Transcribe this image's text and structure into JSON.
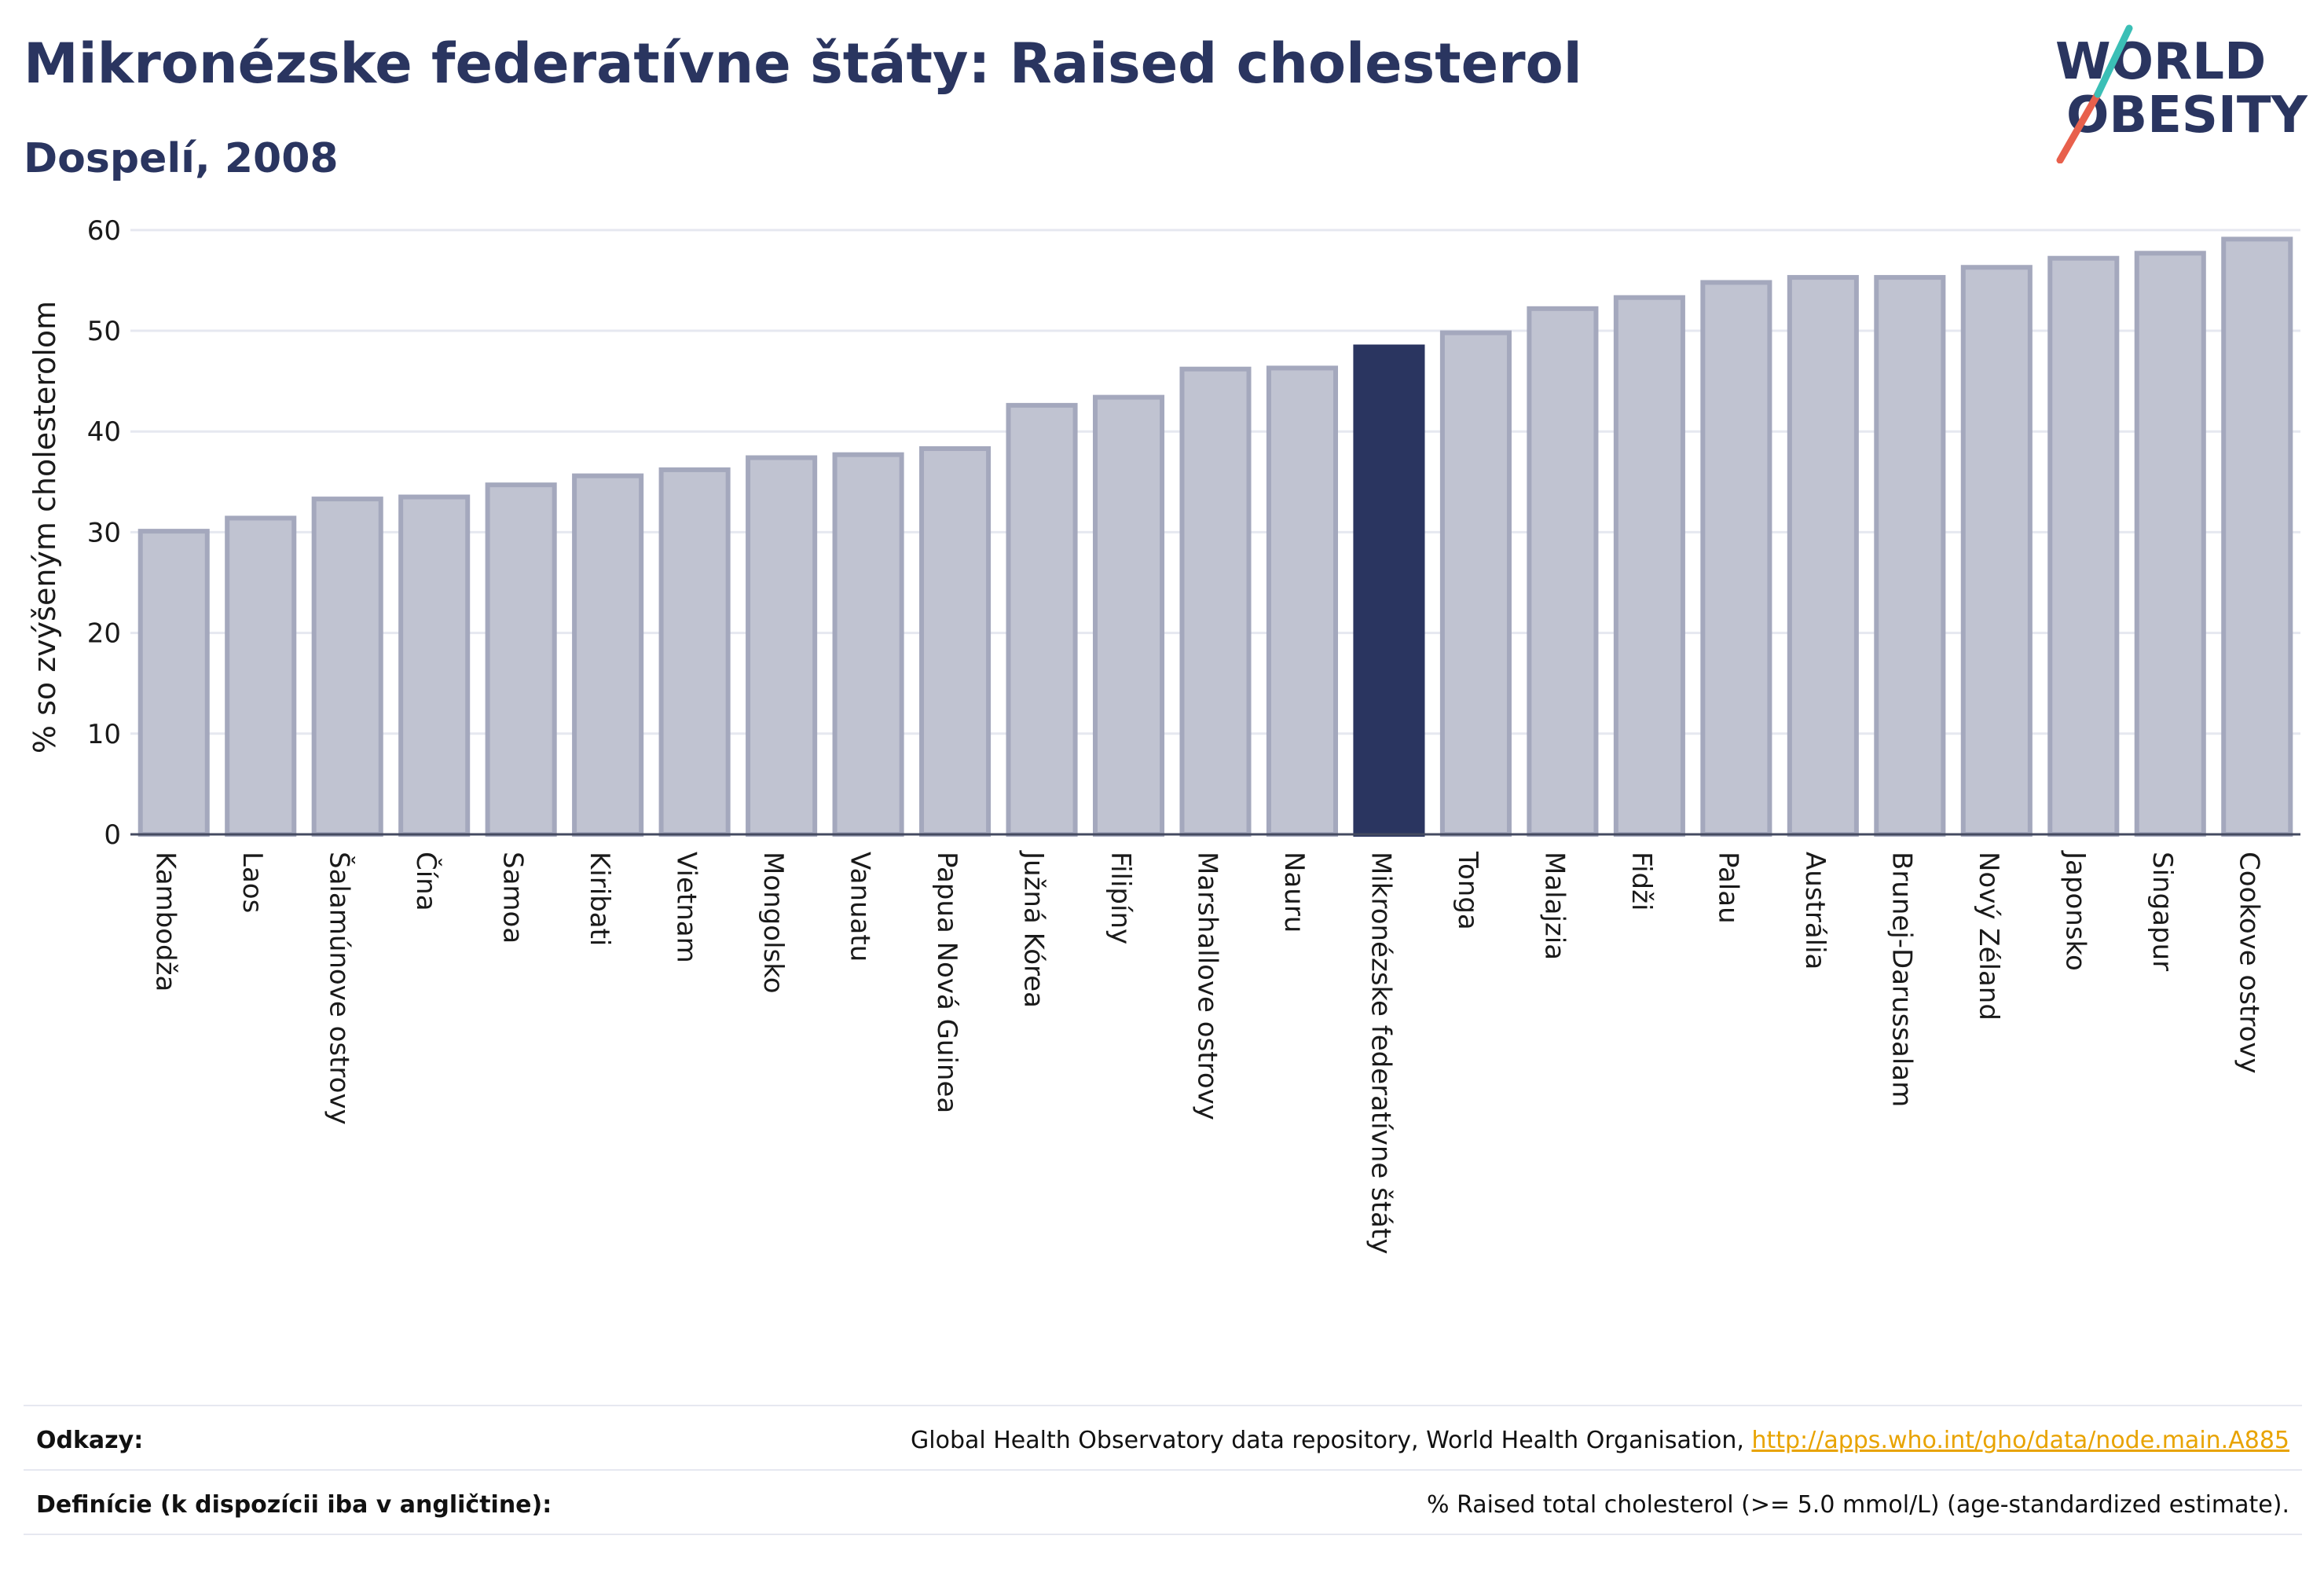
{
  "header": {
    "title": "Mikronézske federatívne štáty: Raised cholesterol",
    "subtitle": "Dospelí, 2008"
  },
  "logo": {
    "line1": "WORLD",
    "line2": "OBESITY",
    "text_color": "#2a3560",
    "slash_colors": [
      "#e8604c",
      "#3bbfb6"
    ]
  },
  "colors": {
    "bar": "#c0c3d1",
    "bar_border": "#a4a8bd",
    "highlight": "#2a3560",
    "grid": "#e6e8f0",
    "axis_text": "#1a1a1a"
  },
  "chart_data": {
    "type": "bar",
    "ylabel": "% so zvýšeným cholesterolom",
    "xlabel": "",
    "ylim": [
      0,
      61
    ],
    "yticks": [
      0,
      10,
      20,
      30,
      40,
      50,
      60
    ],
    "grid": true,
    "highlight": "Mikronézske federatívne štáty",
    "categories": [
      "Kambodža",
      "Laos",
      "Šalamúnove ostrovy",
      "Čína",
      "Samoa",
      "Kiribati",
      "Vietnam",
      "Mongolsko",
      "Vanuatu",
      "Papua Nová Guinea",
      "Južná Kórea",
      "Filipíny",
      "Marshallove ostrovy",
      "Nauru",
      "Mikronézske federatívne štáty",
      "Tonga",
      "Malajzia",
      "Fidži",
      "Palau",
      "Austrália",
      "Brunej-Darussalam",
      "Nový Zéland",
      "Japonsko",
      "Singapur",
      "Cookove ostrovy"
    ],
    "values": [
      30.1,
      31.4,
      33.3,
      33.5,
      34.7,
      35.6,
      36.2,
      37.4,
      37.7,
      38.3,
      42.6,
      43.4,
      46.2,
      46.3,
      48.4,
      49.8,
      52.2,
      53.3,
      54.8,
      55.3,
      55.3,
      56.3,
      57.2,
      57.7,
      59.1
    ]
  },
  "footer": {
    "references_label": "Odkazy:",
    "references_text": "Global Health Observatory data repository, World Health Organisation, ",
    "references_link": "http://apps.who.int/gho/data/node.main.A885",
    "definitions_label": "Definície (k dispozícii iba v angličtine):",
    "definitions_text": "% Raised total cholesterol (>= 5.0 mmol/L) (age-standardized estimate)."
  }
}
